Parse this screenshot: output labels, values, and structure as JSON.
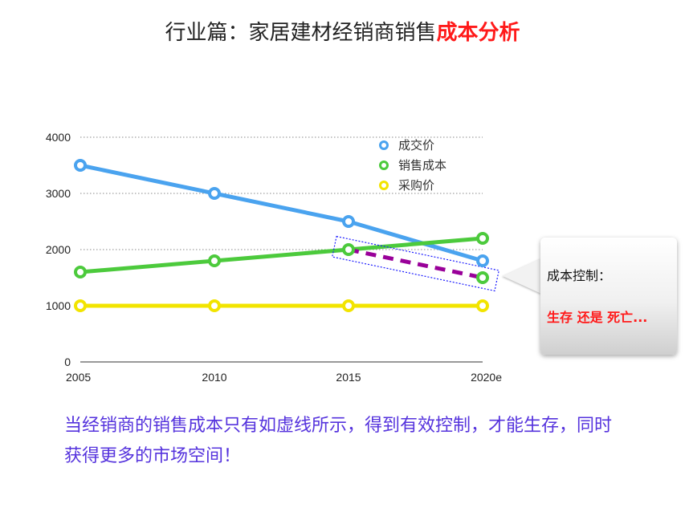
{
  "title": {
    "main": "行业篇：家居建材经销商销售",
    "highlight": "成本分析"
  },
  "callout": {
    "line1": "成本控制：",
    "line2": "生存 还是 死亡..."
  },
  "note": "当经销商的销售成本只有如虚线所示，得到有效控制，才能生存，同时获得更多的市场空间！",
  "colors": {
    "成交价": "#4aa3ef",
    "销售成本": "#4cca3c",
    "采购价": "#f2e400",
    "dashed": "#990099",
    "highlight": "#ff1a1a"
  },
  "chart_data": {
    "type": "line",
    "categories": [
      "2005",
      "2010",
      "2015",
      "2020e"
    ],
    "ylim": [
      0,
      4000
    ],
    "yticks": [
      0,
      1000,
      2000,
      3000,
      4000
    ],
    "grid": true,
    "legend": "top-right",
    "series": [
      {
        "name": "成交价",
        "values": [
          3500,
          3000,
          2500,
          1800
        ]
      },
      {
        "name": "销售成本",
        "values": [
          1600,
          1800,
          2000,
          2200
        ]
      },
      {
        "name": "采购价",
        "values": [
          1000,
          1000,
          1000,
          1000
        ]
      }
    ],
    "projection": {
      "from_category": "2015",
      "to_category": "2020e",
      "values": [
        2000,
        1500
      ],
      "style": "dashed"
    }
  }
}
